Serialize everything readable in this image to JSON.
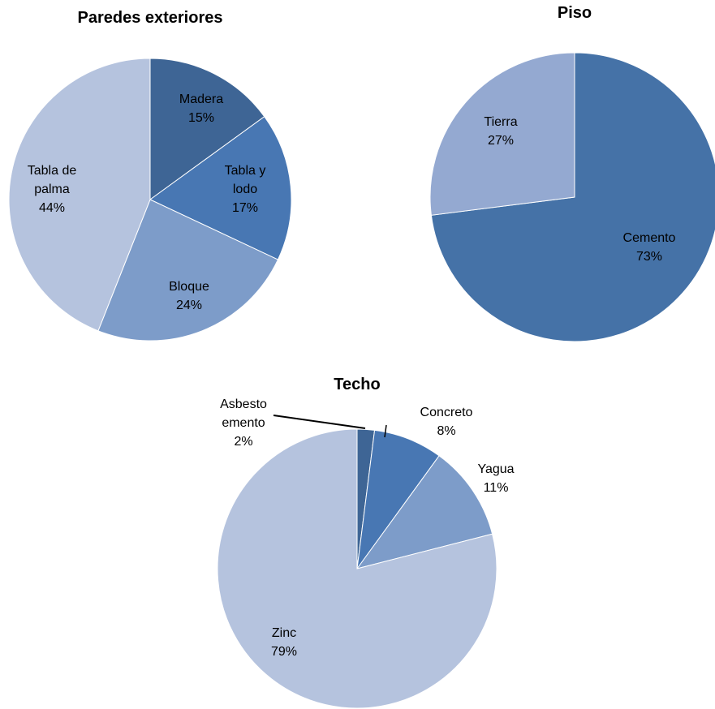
{
  "chart_data": [
    {
      "type": "pie",
      "title": "Paredes exteriores",
      "slices": [
        {
          "label": [
            "Madera"
          ],
          "value": 15,
          "value_label": "15%",
          "color": "#3e6595"
        },
        {
          "label": [
            "Tabla y",
            "lodo"
          ],
          "value": 17,
          "value_label": "17%",
          "color": "#4877b3"
        },
        {
          "label": [
            "Bloque"
          ],
          "value": 24,
          "value_label": "24%",
          "color": "#7d9cc9"
        },
        {
          "label": [
            "Tabla de",
            "palma"
          ],
          "value": 44,
          "value_label": "44%",
          "color": "#b5c3de"
        }
      ]
    },
    {
      "type": "pie",
      "title": "Piso",
      "slices": [
        {
          "label": [
            "Cemento"
          ],
          "value": 73,
          "value_label": "73%",
          "color": "#4572a7"
        },
        {
          "label": [
            "Tierra"
          ],
          "value": 27,
          "value_label": "27%",
          "color": "#94a9d1"
        }
      ]
    },
    {
      "type": "pie",
      "title": "Techo",
      "slices": [
        {
          "label": [
            "Asbesto",
            "emento"
          ],
          "value": 2,
          "value_label": "2%",
          "color": "#3e6595"
        },
        {
          "label": [
            "Concreto"
          ],
          "value": 8,
          "value_label": "8%",
          "color": "#4877b3"
        },
        {
          "label": [
            "Yagua"
          ],
          "value": 11,
          "value_label": "11%",
          "color": "#7d9cc9"
        },
        {
          "label": [
            "Zinc"
          ],
          "value": 79,
          "value_label": "79%",
          "color": "#b5c3de"
        }
      ]
    }
  ]
}
